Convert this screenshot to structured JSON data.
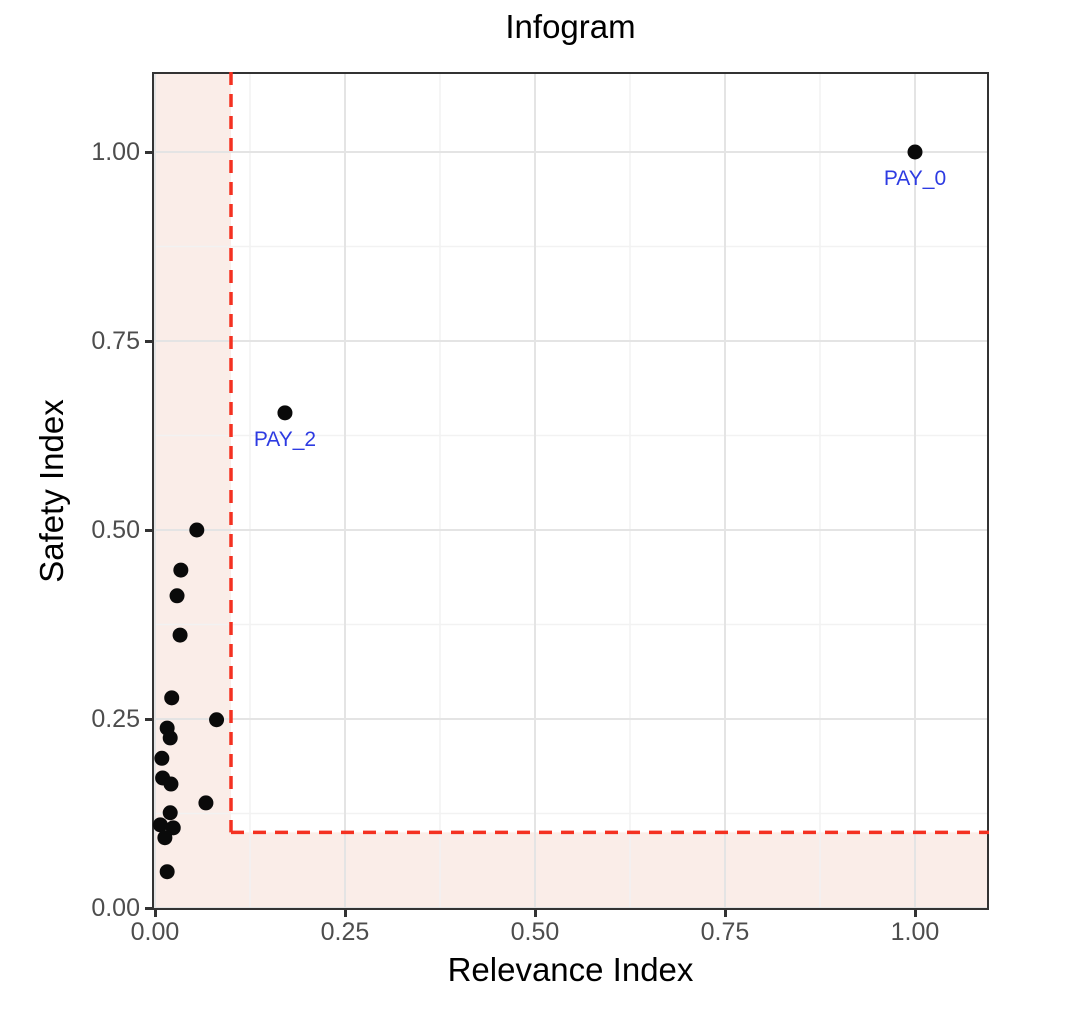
{
  "chart_data": {
    "type": "scatter",
    "title": "Infogram",
    "xlabel": "Relevance Index",
    "ylabel": "Safety Index",
    "xlim": [
      0,
      1.1
    ],
    "ylim": [
      0,
      1.1
    ],
    "grid": "major and minor gridlines, white panel, dark panel border",
    "legend": "none",
    "x_ticks": [
      {
        "label": "0.00",
        "value": 0.0
      },
      {
        "label": "0.25",
        "value": 0.25
      },
      {
        "label": "0.50",
        "value": 0.5
      },
      {
        "label": "0.75",
        "value": 0.75
      },
      {
        "label": "1.00",
        "value": 1.0
      }
    ],
    "y_ticks": [
      {
        "label": "0.00",
        "value": 0.0
      },
      {
        "label": "0.25",
        "value": 0.25
      },
      {
        "label": "0.50",
        "value": 0.5
      },
      {
        "label": "0.75",
        "value": 0.75
      },
      {
        "label": "1.00",
        "value": 1.0
      }
    ],
    "x_minor_gridlines": [
      0.125,
      0.375,
      0.625,
      0.875
    ],
    "y_minor_gridlines": [
      0.125,
      0.375,
      0.625,
      0.875
    ],
    "thresholds": {
      "x": 0.1,
      "y": 0.1,
      "style": "dashed",
      "shaded_region": "L-shaped band where x<0.1 or y<0.1"
    },
    "labeled_points": [
      {
        "label": "PAY_0",
        "x": 1.0,
        "y": 1.0
      },
      {
        "label": "PAY_2",
        "x": 0.171,
        "y": 0.655
      }
    ],
    "unlabeled_points": [
      {
        "x": 0.055,
        "y": 0.5
      },
      {
        "x": 0.034,
        "y": 0.447
      },
      {
        "x": 0.029,
        "y": 0.413
      },
      {
        "x": 0.033,
        "y": 0.361
      },
      {
        "x": 0.022,
        "y": 0.278
      },
      {
        "x": 0.081,
        "y": 0.249
      },
      {
        "x": 0.016,
        "y": 0.238
      },
      {
        "x": 0.02,
        "y": 0.225
      },
      {
        "x": 0.009,
        "y": 0.198
      },
      {
        "x": 0.01,
        "y": 0.172
      },
      {
        "x": 0.021,
        "y": 0.164
      },
      {
        "x": 0.067,
        "y": 0.139
      },
      {
        "x": 0.02,
        "y": 0.126
      },
      {
        "x": 0.007,
        "y": 0.11
      },
      {
        "x": 0.024,
        "y": 0.106
      },
      {
        "x": 0.013,
        "y": 0.093
      },
      {
        "x": 0.016,
        "y": 0.048
      }
    ],
    "colors": {
      "point": "#0a0a0a",
      "point_label": "#2d3be2",
      "threshold_line": "#f43121",
      "shaded_region": "#faede8",
      "grid_major": "#e4e4e4",
      "grid_minor": "#f2f2f2",
      "panel_border": "#333333",
      "tick_label": "#4d4d4d",
      "title": "#000000"
    }
  }
}
